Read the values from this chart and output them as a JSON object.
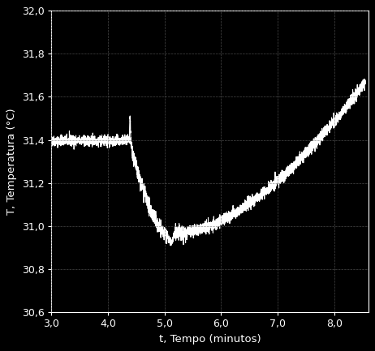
{
  "background_color": "#000000",
  "line_color": "#ffffff",
  "grid_color": "#666666",
  "xlabel": "t, Tempo (minutos)",
  "ylabel": "T, Temperatura (°C)",
  "xlim": [
    3.0,
    8.6
  ],
  "ylim": [
    30.6,
    32.0
  ],
  "xticks": [
    3.0,
    4.0,
    5.0,
    6.0,
    7.0,
    8.0
  ],
  "yticks": [
    30.6,
    30.8,
    31.0,
    31.2,
    31.4,
    31.6,
    31.8,
    32.0
  ],
  "tick_label_color": "#ffffff",
  "axis_color": "#ffffff",
  "figsize": [
    4.62,
    4.33
  ],
  "dpi": 100
}
